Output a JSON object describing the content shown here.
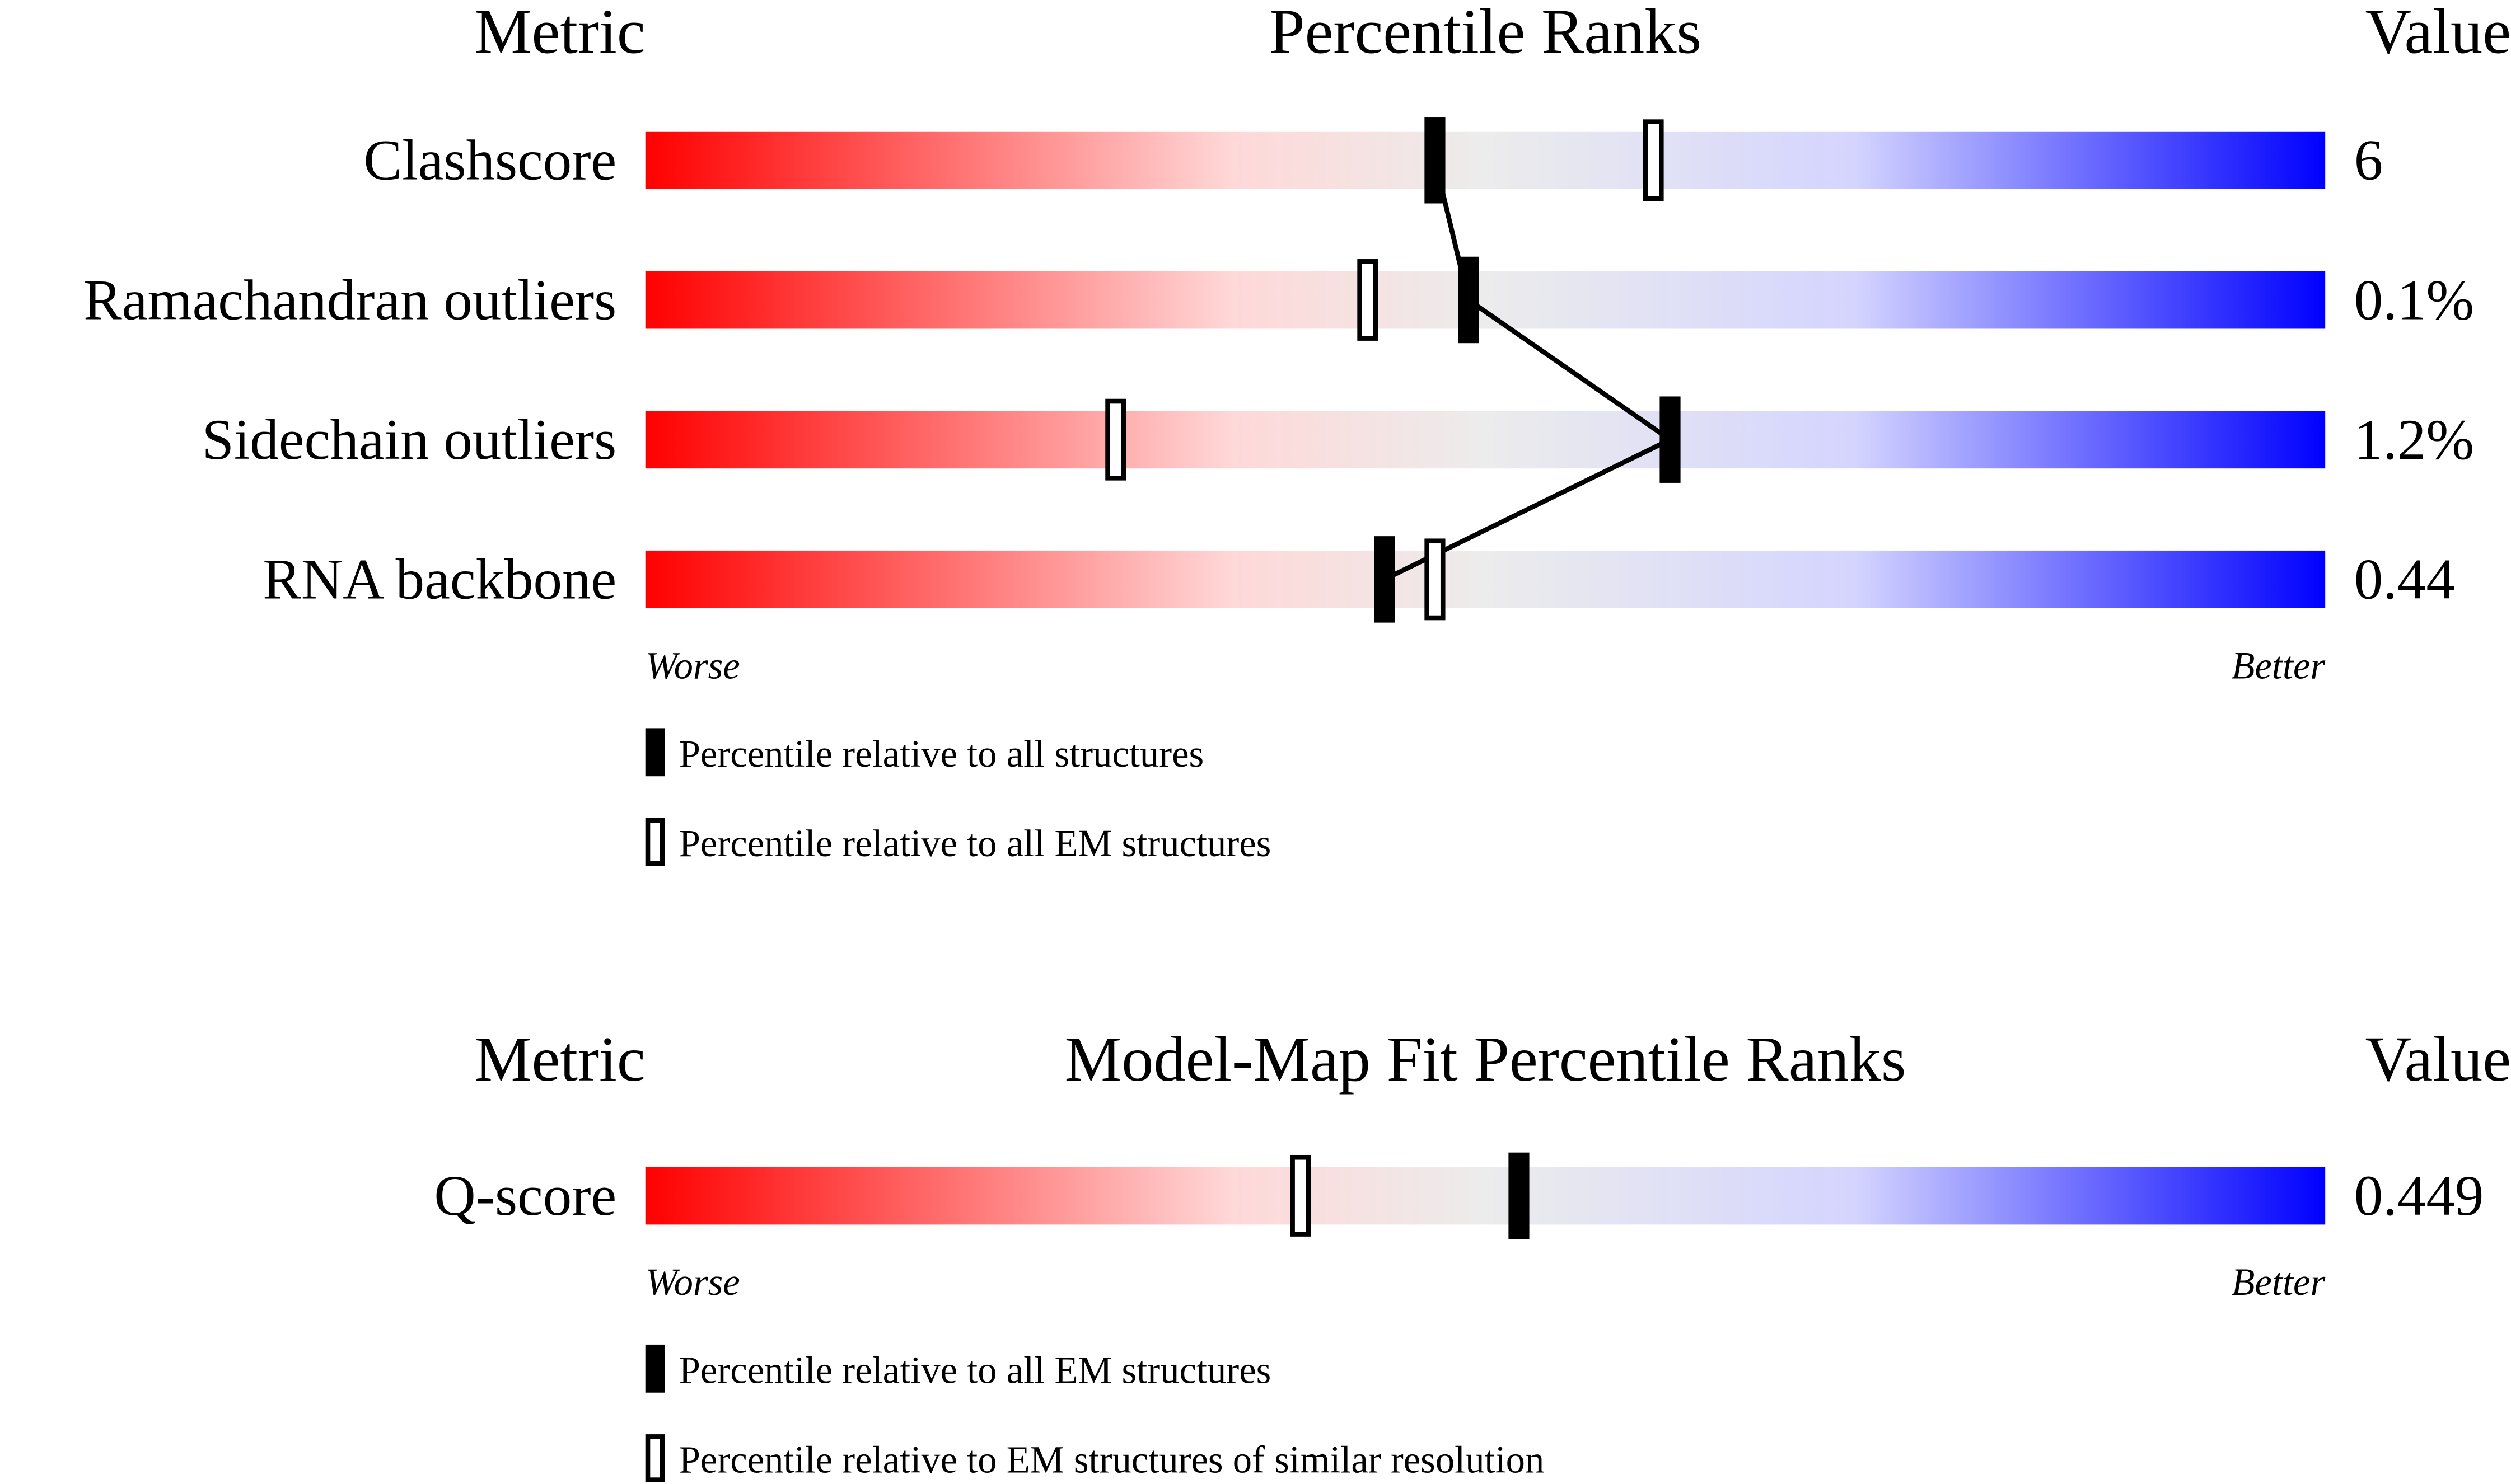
{
  "chart_data": [
    {
      "type": "slider",
      "metric_header": "Metric",
      "title": "Percentile Ranks",
      "value_header": "Value",
      "categories": [
        "Clashscore",
        "Ramachandran outliers",
        "Sidechain outliers",
        "RNA backbone"
      ],
      "metric_values": [
        "6",
        "0.1%",
        "1.2%",
        "0.44"
      ],
      "xlim": [
        0,
        100
      ],
      "worse_label": "Worse",
      "better_label": "Better",
      "connect_filled": true,
      "series": [
        {
          "name": "Percentile relative to all structures",
          "style": "filled",
          "color": "#000000",
          "values": [
            47,
            49,
            61,
            44
          ]
        },
        {
          "name": "Percentile relative to all EM structures",
          "style": "open",
          "color": "#000000",
          "values": [
            60,
            43,
            28,
            47
          ]
        }
      ]
    },
    {
      "type": "slider",
      "metric_header": "Metric",
      "title": "Model-Map Fit Percentile Ranks",
      "value_header": "Value",
      "categories": [
        "Q-score"
      ],
      "metric_values": [
        "0.449"
      ],
      "xlim": [
        0,
        100
      ],
      "worse_label": "Worse",
      "better_label": "Better",
      "connect_filled": false,
      "series": [
        {
          "name": "Percentile relative to all EM structures",
          "style": "filled",
          "color": "#000000",
          "values": [
            52
          ]
        },
        {
          "name": "Percentile relative to EM structures of similar resolution",
          "style": "open",
          "color": "#000000",
          "values": [
            39
          ]
        }
      ]
    }
  ]
}
